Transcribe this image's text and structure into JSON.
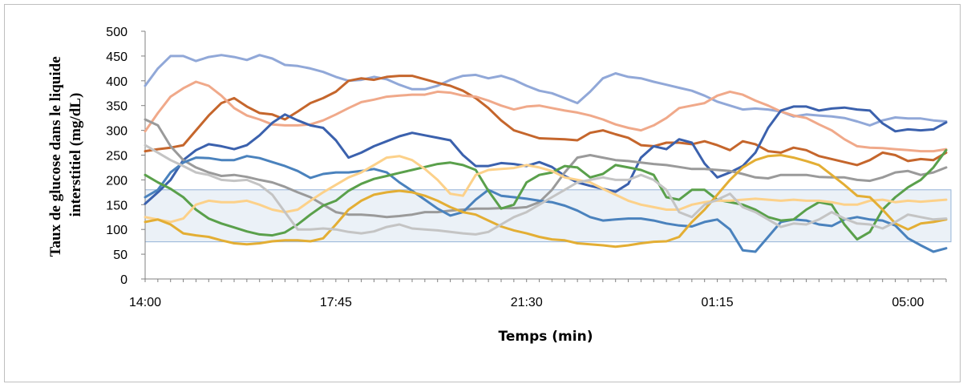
{
  "chart_data": {
    "type": "line",
    "xlabel": "Temps (min)",
    "ylabel_lines": [
      "Taux de glucose dans le liquide",
      "interstitiel (mg/dL)"
    ],
    "x_tick_labels": [
      "14:00",
      "17:45",
      "21:30",
      "01:15",
      "05:00"
    ],
    "x_tick_index": [
      0,
      15,
      30,
      45,
      60
    ],
    "ylim": [
      0,
      500
    ],
    "y_ticks": [
      0,
      50,
      100,
      150,
      200,
      250,
      300,
      350,
      400,
      450,
      500
    ],
    "target_range": [
      75,
      180
    ],
    "target_range_color": "#dbe5f1",
    "grid": false,
    "legend": "none",
    "series": [
      {
        "color": "#91a8d8",
        "values": [
          390,
          425,
          450,
          450,
          440,
          448,
          452,
          448,
          442,
          452,
          445,
          432,
          430,
          425,
          418,
          408,
          400,
          402,
          408,
          403,
          392,
          383,
          383,
          390,
          402,
          410,
          412,
          405,
          410,
          402,
          390,
          380,
          375,
          365,
          355,
          378,
          405,
          415,
          408,
          405,
          398,
          392,
          386,
          380,
          370,
          358,
          350,
          342,
          344,
          342,
          338,
          328,
          332,
          330,
          328,
          325,
          318,
          310,
          320,
          326,
          324,
          324,
          320,
          318
        ]
      },
      {
        "color": "#c5662c",
        "values": [
          258,
          262,
          265,
          270,
          300,
          330,
          355,
          365,
          348,
          335,
          332,
          322,
          338,
          355,
          365,
          378,
          400,
          405,
          402,
          408,
          410,
          410,
          403,
          396,
          390,
          380,
          365,
          345,
          320,
          300,
          292,
          284,
          283,
          282,
          280,
          295,
          300,
          292,
          285,
          270,
          268,
          275,
          275,
          272,
          278,
          270,
          260,
          278,
          272,
          258,
          255,
          265,
          260,
          248,
          242,
          236,
          230,
          240,
          255,
          250,
          238,
          242,
          240,
          255
        ]
      },
      {
        "color": "#f0a98a",
        "values": [
          298,
          335,
          368,
          385,
          398,
          390,
          370,
          345,
          330,
          322,
          312,
          310,
          310,
          312,
          320,
          332,
          345,
          357,
          362,
          368,
          370,
          372,
          372,
          378,
          376,
          370,
          368,
          360,
          350,
          342,
          348,
          350,
          345,
          340,
          336,
          330,
          322,
          312,
          305,
          300,
          310,
          325,
          345,
          350,
          355,
          370,
          378,
          372,
          360,
          350,
          338,
          330,
          325,
          312,
          300,
          282,
          268,
          265,
          264,
          262,
          260,
          258,
          258,
          262
        ]
      },
      {
        "color": "#3b61ad",
        "values": [
          152,
          175,
          200,
          240,
          260,
          272,
          268,
          262,
          270,
          290,
          315,
          332,
          320,
          310,
          305,
          280,
          245,
          255,
          268,
          278,
          288,
          295,
          290,
          285,
          280,
          250,
          228,
          228,
          234,
          232,
          228,
          236,
          226,
          208,
          195,
          188,
          182,
          176,
          192,
          245,
          268,
          262,
          282,
          275,
          233,
          205,
          215,
          228,
          255,
          305,
          340,
          348,
          348,
          340,
          344,
          346,
          342,
          340,
          314,
          298,
          302,
          300,
          302,
          316
        ]
      },
      {
        "color": "#9a9a9a",
        "values": [
          322,
          310,
          268,
          240,
          225,
          215,
          208,
          210,
          206,
          200,
          195,
          186,
          175,
          165,
          150,
          135,
          130,
          130,
          128,
          125,
          127,
          130,
          135,
          135,
          138,
          140,
          142,
          142,
          143,
          143,
          145,
          155,
          180,
          215,
          245,
          250,
          245,
          240,
          238,
          235,
          232,
          230,
          226,
          222,
          222,
          220,
          218,
          212,
          205,
          203,
          210,
          210,
          210,
          206,
          205,
          205,
          200,
          198,
          205,
          215,
          218,
          210,
          215,
          225
        ]
      },
      {
        "color": "#4a82bd",
        "values": [
          165,
          180,
          215,
          235,
          245,
          244,
          240,
          240,
          248,
          244,
          236,
          228,
          218,
          204,
          212,
          215,
          215,
          218,
          222,
          215,
          195,
          178,
          160,
          142,
          128,
          135,
          160,
          180,
          168,
          165,
          162,
          158,
          155,
          148,
          138,
          125,
          118,
          120,
          122,
          122,
          118,
          112,
          108,
          106,
          115,
          120,
          100,
          58,
          55,
          85,
          115,
          120,
          118,
          110,
          107,
          120,
          125,
          120,
          118,
          108,
          82,
          68,
          55,
          62
        ]
      },
      {
        "color": "#5aa04b",
        "values": [
          210,
          195,
          182,
          165,
          140,
          122,
          112,
          104,
          96,
          90,
          88,
          94,
          110,
          130,
          148,
          158,
          178,
          192,
          202,
          208,
          214,
          220,
          226,
          232,
          235,
          230,
          220,
          178,
          142,
          150,
          195,
          210,
          215,
          228,
          225,
          205,
          212,
          230,
          225,
          220,
          210,
          165,
          160,
          180,
          180,
          160,
          155,
          150,
          140,
          125,
          118,
          120,
          140,
          155,
          150,
          110,
          80,
          95,
          140,
          165,
          185,
          200,
          225,
          260
        ]
      },
      {
        "color": "#fcd18a",
        "values": [
          125,
          120,
          115,
          122,
          150,
          158,
          155,
          155,
          158,
          150,
          140,
          135,
          140,
          158,
          175,
          190,
          205,
          215,
          230,
          245,
          248,
          240,
          222,
          200,
          172,
          168,
          210,
          220,
          222,
          224,
          230,
          225,
          218,
          205,
          200,
          195,
          182,
          170,
          158,
          150,
          145,
          140,
          140,
          150,
          155,
          158,
          158,
          160,
          162,
          160,
          158,
          160,
          158,
          158,
          155,
          150,
          150,
          158,
          160,
          155,
          158,
          156,
          158,
          160
        ]
      },
      {
        "color": "#e3ae34",
        "values": [
          115,
          120,
          110,
          92,
          88,
          85,
          78,
          72,
          70,
          72,
          76,
          78,
          78,
          76,
          82,
          110,
          140,
          158,
          170,
          175,
          178,
          175,
          168,
          158,
          145,
          135,
          130,
          118,
          106,
          98,
          92,
          85,
          80,
          78,
          72,
          70,
          68,
          65,
          68,
          72,
          75,
          76,
          85,
          115,
          140,
          170,
          200,
          225,
          240,
          248,
          250,
          245,
          238,
          230,
          210,
          190,
          168,
          165,
          140,
          112,
          100,
          112,
          115,
          120
        ]
      },
      {
        "color": "#c4c4c4",
        "values": [
          270,
          255,
          240,
          228,
          215,
          210,
          200,
          198,
          200,
          190,
          170,
          135,
          100,
          100,
          102,
          100,
          95,
          92,
          96,
          105,
          110,
          102,
          100,
          98,
          95,
          92,
          90,
          95,
          110,
          125,
          135,
          150,
          165,
          180,
          195,
          200,
          205,
          200,
          200,
          210,
          200,
          180,
          135,
          125,
          150,
          160,
          172,
          145,
          135,
          120,
          105,
          112,
          110,
          120,
          135,
          122,
          112,
          110,
          102,
          115,
          130,
          125,
          120,
          122
        ]
      }
    ]
  }
}
